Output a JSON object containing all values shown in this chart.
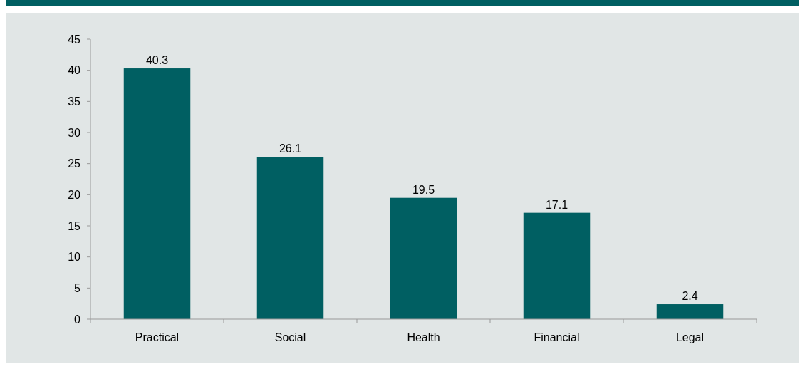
{
  "chart_data": {
    "type": "bar",
    "categories": [
      "Practical",
      "Social",
      "Health",
      "Financial",
      "Legal"
    ],
    "values": [
      40.3,
      26.1,
      19.5,
      17.1,
      2.4
    ],
    "color": "#005f62",
    "data_labels": true,
    "ylim": [
      0,
      45
    ],
    "yticks": [
      0,
      5,
      10,
      15,
      20,
      25,
      30,
      35,
      40,
      45
    ]
  }
}
